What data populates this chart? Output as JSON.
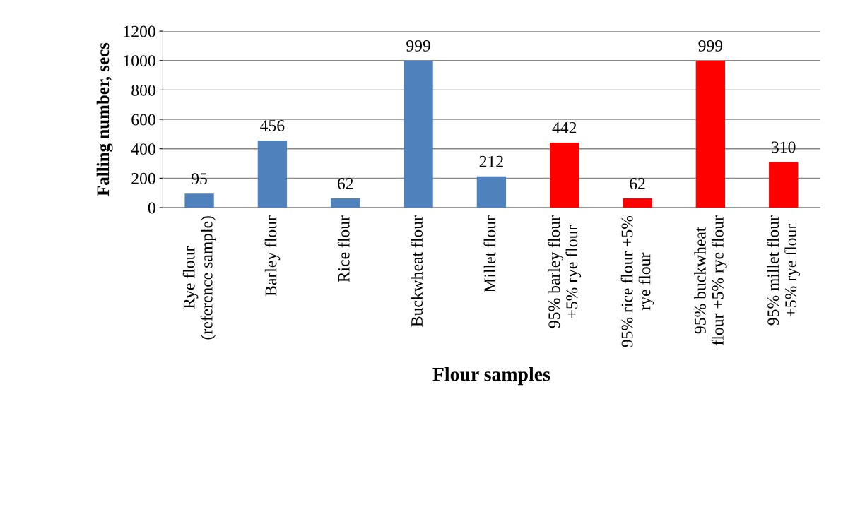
{
  "chart_data": {
    "type": "bar",
    "xlabel": "Flour samples",
    "ylabel": "Falling number, secs",
    "categories": [
      "Rye flour\n(reference sample)",
      "Barley flour",
      "Rice flour",
      "Buckwheat flour",
      "Millet flour",
      "95% barley flour\n+5% rye flour",
      "95% rice flour +5%\nrye flour",
      "95% buckwheat\nflour +5% rye flour",
      "95% millet flour\n+5% rye flour"
    ],
    "values": [
      95,
      456,
      62,
      999,
      212,
      442,
      62,
      999,
      310
    ],
    "colors": [
      "#4f81bd",
      "#4f81bd",
      "#4f81bd",
      "#4f81bd",
      "#4f81bd",
      "#ff0000",
      "#ff0000",
      "#ff0000",
      "#ff0000"
    ],
    "ylim": [
      0,
      1200
    ],
    "yticks": [
      0,
      200,
      400,
      600,
      800,
      1000,
      1200
    ],
    "grid": "y",
    "data_labels": true
  }
}
